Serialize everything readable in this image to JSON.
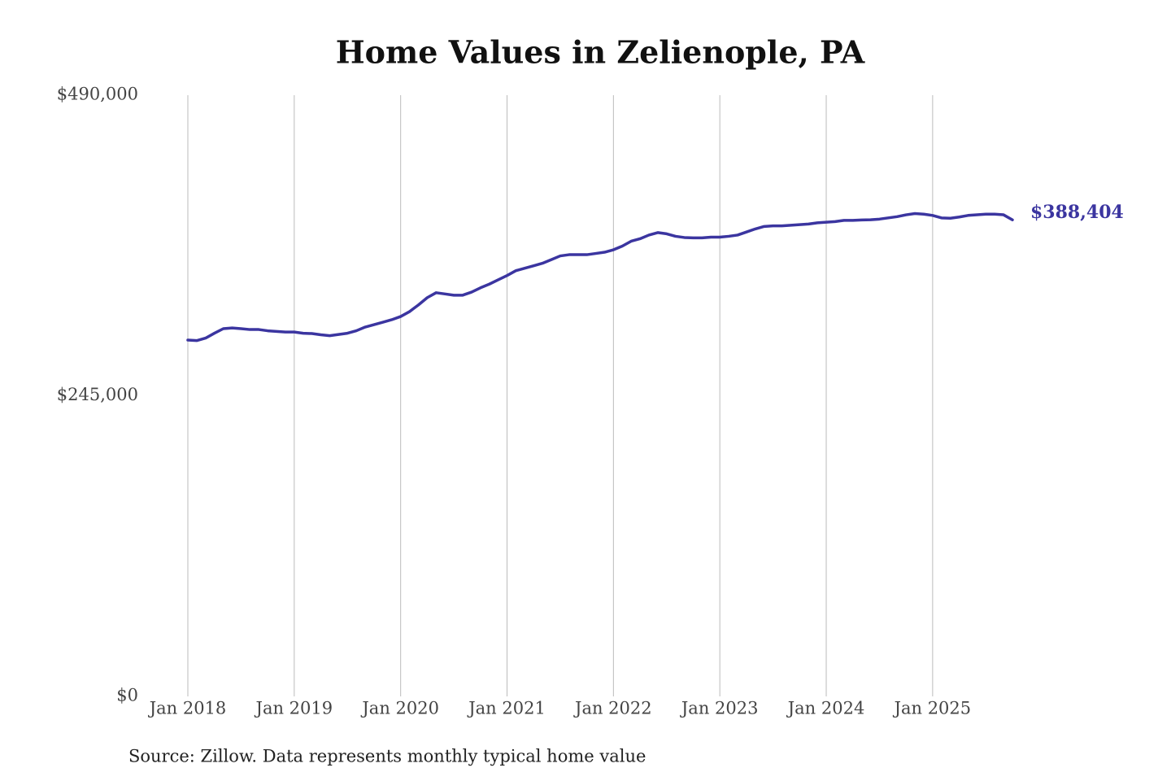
{
  "chart_data": {
    "type": "line",
    "title": "Home Values in Zelienople, PA",
    "source": "Source: Zillow. Data represents monthly typical home value",
    "categories": [
      "Jan 2018",
      null,
      null,
      null,
      null,
      null,
      null,
      null,
      null,
      null,
      null,
      null,
      "Jan 2019",
      null,
      null,
      null,
      null,
      null,
      null,
      null,
      null,
      null,
      null,
      null,
      "Jan 2020",
      null,
      null,
      null,
      null,
      null,
      null,
      null,
      null,
      null,
      null,
      null,
      "Jan 2021",
      null,
      null,
      null,
      null,
      null,
      null,
      null,
      null,
      null,
      null,
      null,
      "Jan 2022",
      null,
      null,
      null,
      null,
      null,
      null,
      null,
      null,
      null,
      null,
      null,
      "Jan 2023",
      null,
      null,
      null,
      null,
      null,
      null,
      null,
      null,
      null,
      null,
      null,
      "Jan 2024",
      null,
      null,
      null,
      null,
      null,
      null,
      null,
      null,
      null,
      null,
      null,
      "Jan 2025",
      null,
      null,
      null,
      null,
      null,
      null,
      null,
      null,
      null
    ],
    "series": [
      {
        "color": "#3b35a0",
        "values": [
          290400,
          290000,
          292000,
          296000,
          299700,
          300300,
          299700,
          299000,
          299000,
          298000,
          297500,
          297000,
          297000,
          296000,
          295700,
          294700,
          294000,
          295000,
          296000,
          298000,
          301000,
          303000,
          305000,
          307000,
          309600,
          313600,
          319000,
          325000,
          329000,
          328000,
          327000,
          327000,
          329500,
          333000,
          336000,
          339500,
          343000,
          347000,
          349000,
          351000,
          353000,
          356000,
          359000,
          360000,
          360000,
          360000,
          361000,
          362000,
          364000,
          367000,
          371000,
          373000,
          376000,
          378000,
          377000,
          375000,
          374000,
          373700,
          373700,
          374300,
          374300,
          375000,
          376000,
          378500,
          381000,
          383000,
          383500,
          383500,
          384000,
          384500,
          385000,
          386000,
          386500,
          387000,
          388000,
          388000,
          388300,
          388500,
          389000,
          390000,
          391000,
          392500,
          393500,
          393000,
          392000,
          390000,
          389700,
          390700,
          392000,
          392500,
          393000,
          393000,
          392500,
          388404
        ],
        "value_labels": [
          null,
          null,
          null,
          null,
          null,
          null,
          null,
          null,
          null,
          null,
          null,
          null,
          null,
          null,
          null,
          null,
          null,
          null,
          null,
          null,
          null,
          null,
          null,
          null,
          null,
          null,
          null,
          null,
          null,
          null,
          null,
          null,
          null,
          null,
          null,
          null,
          null,
          null,
          null,
          null,
          null,
          null,
          null,
          null,
          null,
          null,
          null,
          null,
          null,
          null,
          null,
          null,
          null,
          null,
          null,
          null,
          null,
          null,
          null,
          null,
          null,
          null,
          null,
          null,
          null,
          null,
          null,
          null,
          null,
          null,
          null,
          null,
          null,
          null,
          null,
          null,
          null,
          null,
          null,
          null,
          null,
          null,
          null,
          null,
          null,
          null,
          null,
          null,
          null,
          null,
          null,
          null,
          null,
          "$388,404"
        ]
      }
    ],
    "ylim": [
      0,
      490000
    ],
    "yticks": [
      {
        "value": 0,
        "label": "$0"
      },
      {
        "value": 245000,
        "label": "$245,000"
      },
      {
        "value": 490000,
        "label": "$490,000"
      }
    ],
    "grid": "x"
  }
}
